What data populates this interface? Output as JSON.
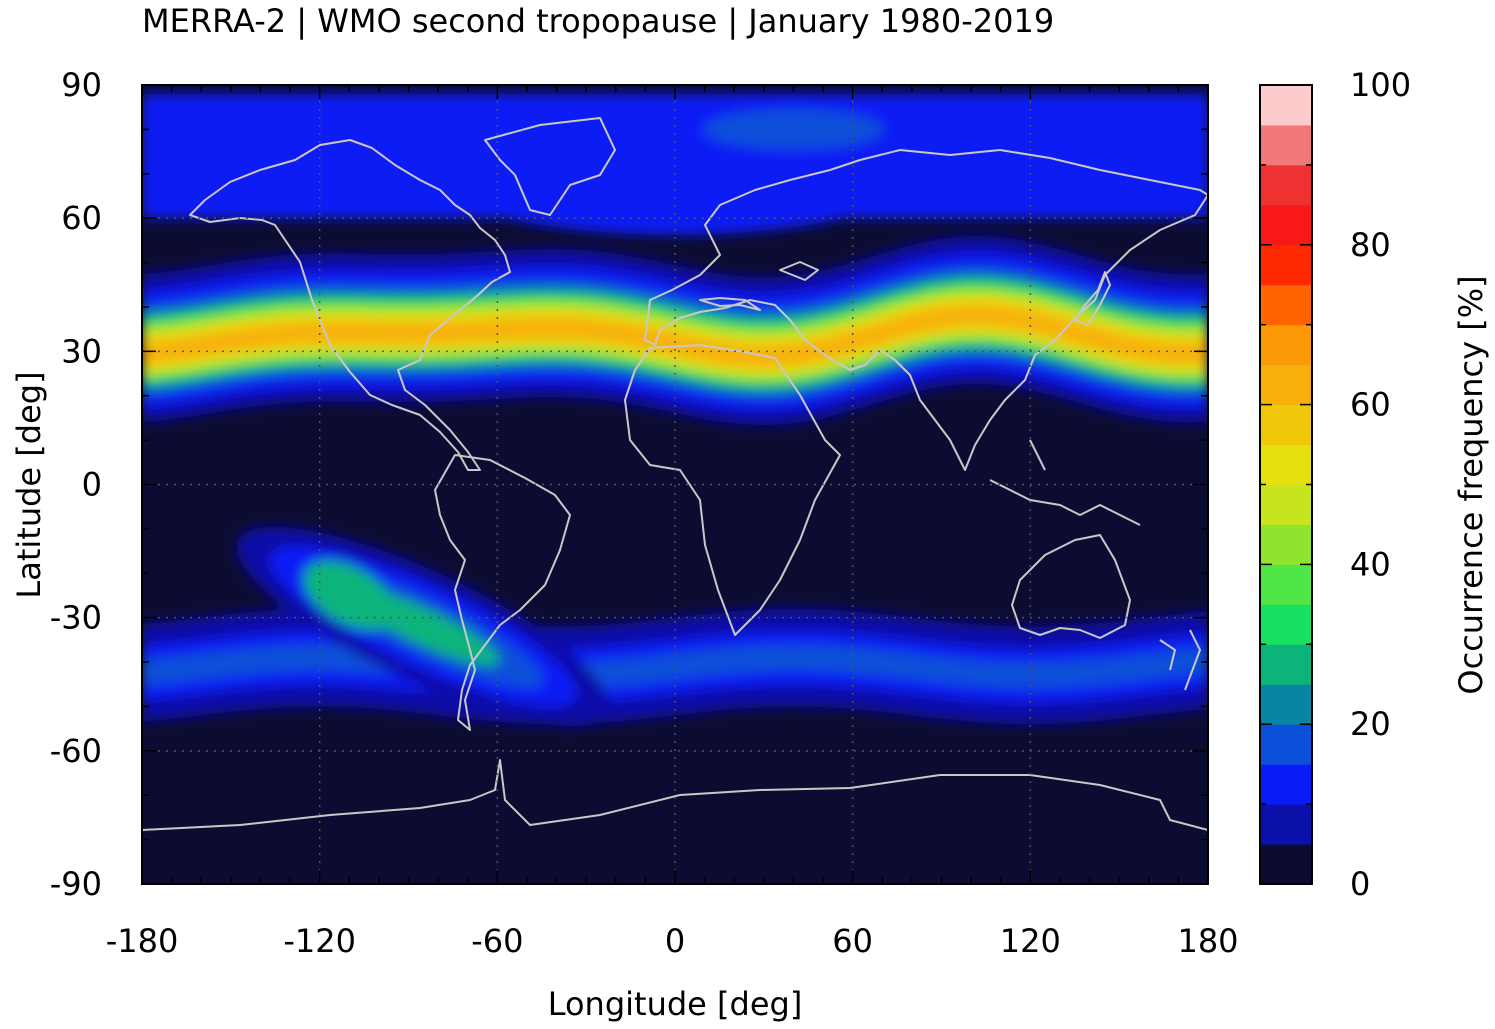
{
  "chart_data": {
    "type": "heatmap",
    "title": "MERRA-2 | WMO second tropopause | January 1980-2019",
    "xlabel": "Longitude [deg]",
    "ylabel": "Latitude [deg]",
    "xlim": [
      -180,
      180
    ],
    "ylim": [
      -90,
      90
    ],
    "x_ticks": [
      -180,
      -120,
      -60,
      0,
      60,
      120,
      180
    ],
    "y_ticks": [
      -90,
      -60,
      -30,
      0,
      30,
      60,
      90
    ],
    "x_tick_labels": [
      "-180",
      "-120",
      "-60",
      "0",
      "60",
      "120",
      "180"
    ],
    "y_tick_labels": [
      "-90",
      "-60",
      "-30",
      "0",
      "30",
      "60",
      "90"
    ],
    "grid": "dotted",
    "colorbar": {
      "label": "Occurrence frequency [%]",
      "range": [
        0,
        100
      ],
      "ticks": [
        0,
        20,
        40,
        60,
        80,
        100
      ],
      "tick_labels": [
        "0",
        "20",
        "40",
        "60",
        "80",
        "100"
      ],
      "levels": [
        {
          "from": 0,
          "to": 5,
          "color": "#0c0c33"
        },
        {
          "from": 5,
          "to": 10,
          "color": "#0a10a8"
        },
        {
          "from": 10,
          "to": 15,
          "color": "#0a1cf5"
        },
        {
          "from": 15,
          "to": 20,
          "color": "#0a50d8"
        },
        {
          "from": 20,
          "to": 25,
          "color": "#0a84a4"
        },
        {
          "from": 25,
          "to": 30,
          "color": "#0cb47a"
        },
        {
          "from": 30,
          "to": 35,
          "color": "#18e060"
        },
        {
          "from": 35,
          "to": 40,
          "color": "#50e648"
        },
        {
          "from": 40,
          "to": 45,
          "color": "#90e430"
        },
        {
          "from": 45,
          "to": 50,
          "color": "#c8e41c"
        },
        {
          "from": 50,
          "to": 55,
          "color": "#e6e010"
        },
        {
          "from": 55,
          "to": 60,
          "color": "#f0c80a"
        },
        {
          "from": 60,
          "to": 65,
          "color": "#f8b00a"
        },
        {
          "from": 65,
          "to": 70,
          "color": "#fb9a06"
        },
        {
          "from": 70,
          "to": 75,
          "color": "#ff6400"
        },
        {
          "from": 75,
          "to": 80,
          "color": "#ff2a00"
        },
        {
          "from": 80,
          "to": 85,
          "color": "#f81818"
        },
        {
          "from": 85,
          "to": 90,
          "color": "#ee3232"
        },
        {
          "from": 90,
          "to": 95,
          "color": "#f07878"
        },
        {
          "from": 95,
          "to": 100,
          "color": "#fccccc"
        }
      ]
    },
    "features": [
      {
        "name": "northern subtropical band",
        "lat_center": 33,
        "lat_range": [
          18,
          58
        ],
        "peak_percent": 63
      },
      {
        "name": "arctic region",
        "lat_range": [
          60,
          88
        ],
        "peak_percent": 18
      },
      {
        "name": "southern band",
        "lat_range": [
          -55,
          -30
        ],
        "peak_percent": 15
      },
      {
        "name": "south pacific maximum",
        "lon": -110,
        "lat": -25,
        "peak_percent": 28
      }
    ]
  }
}
